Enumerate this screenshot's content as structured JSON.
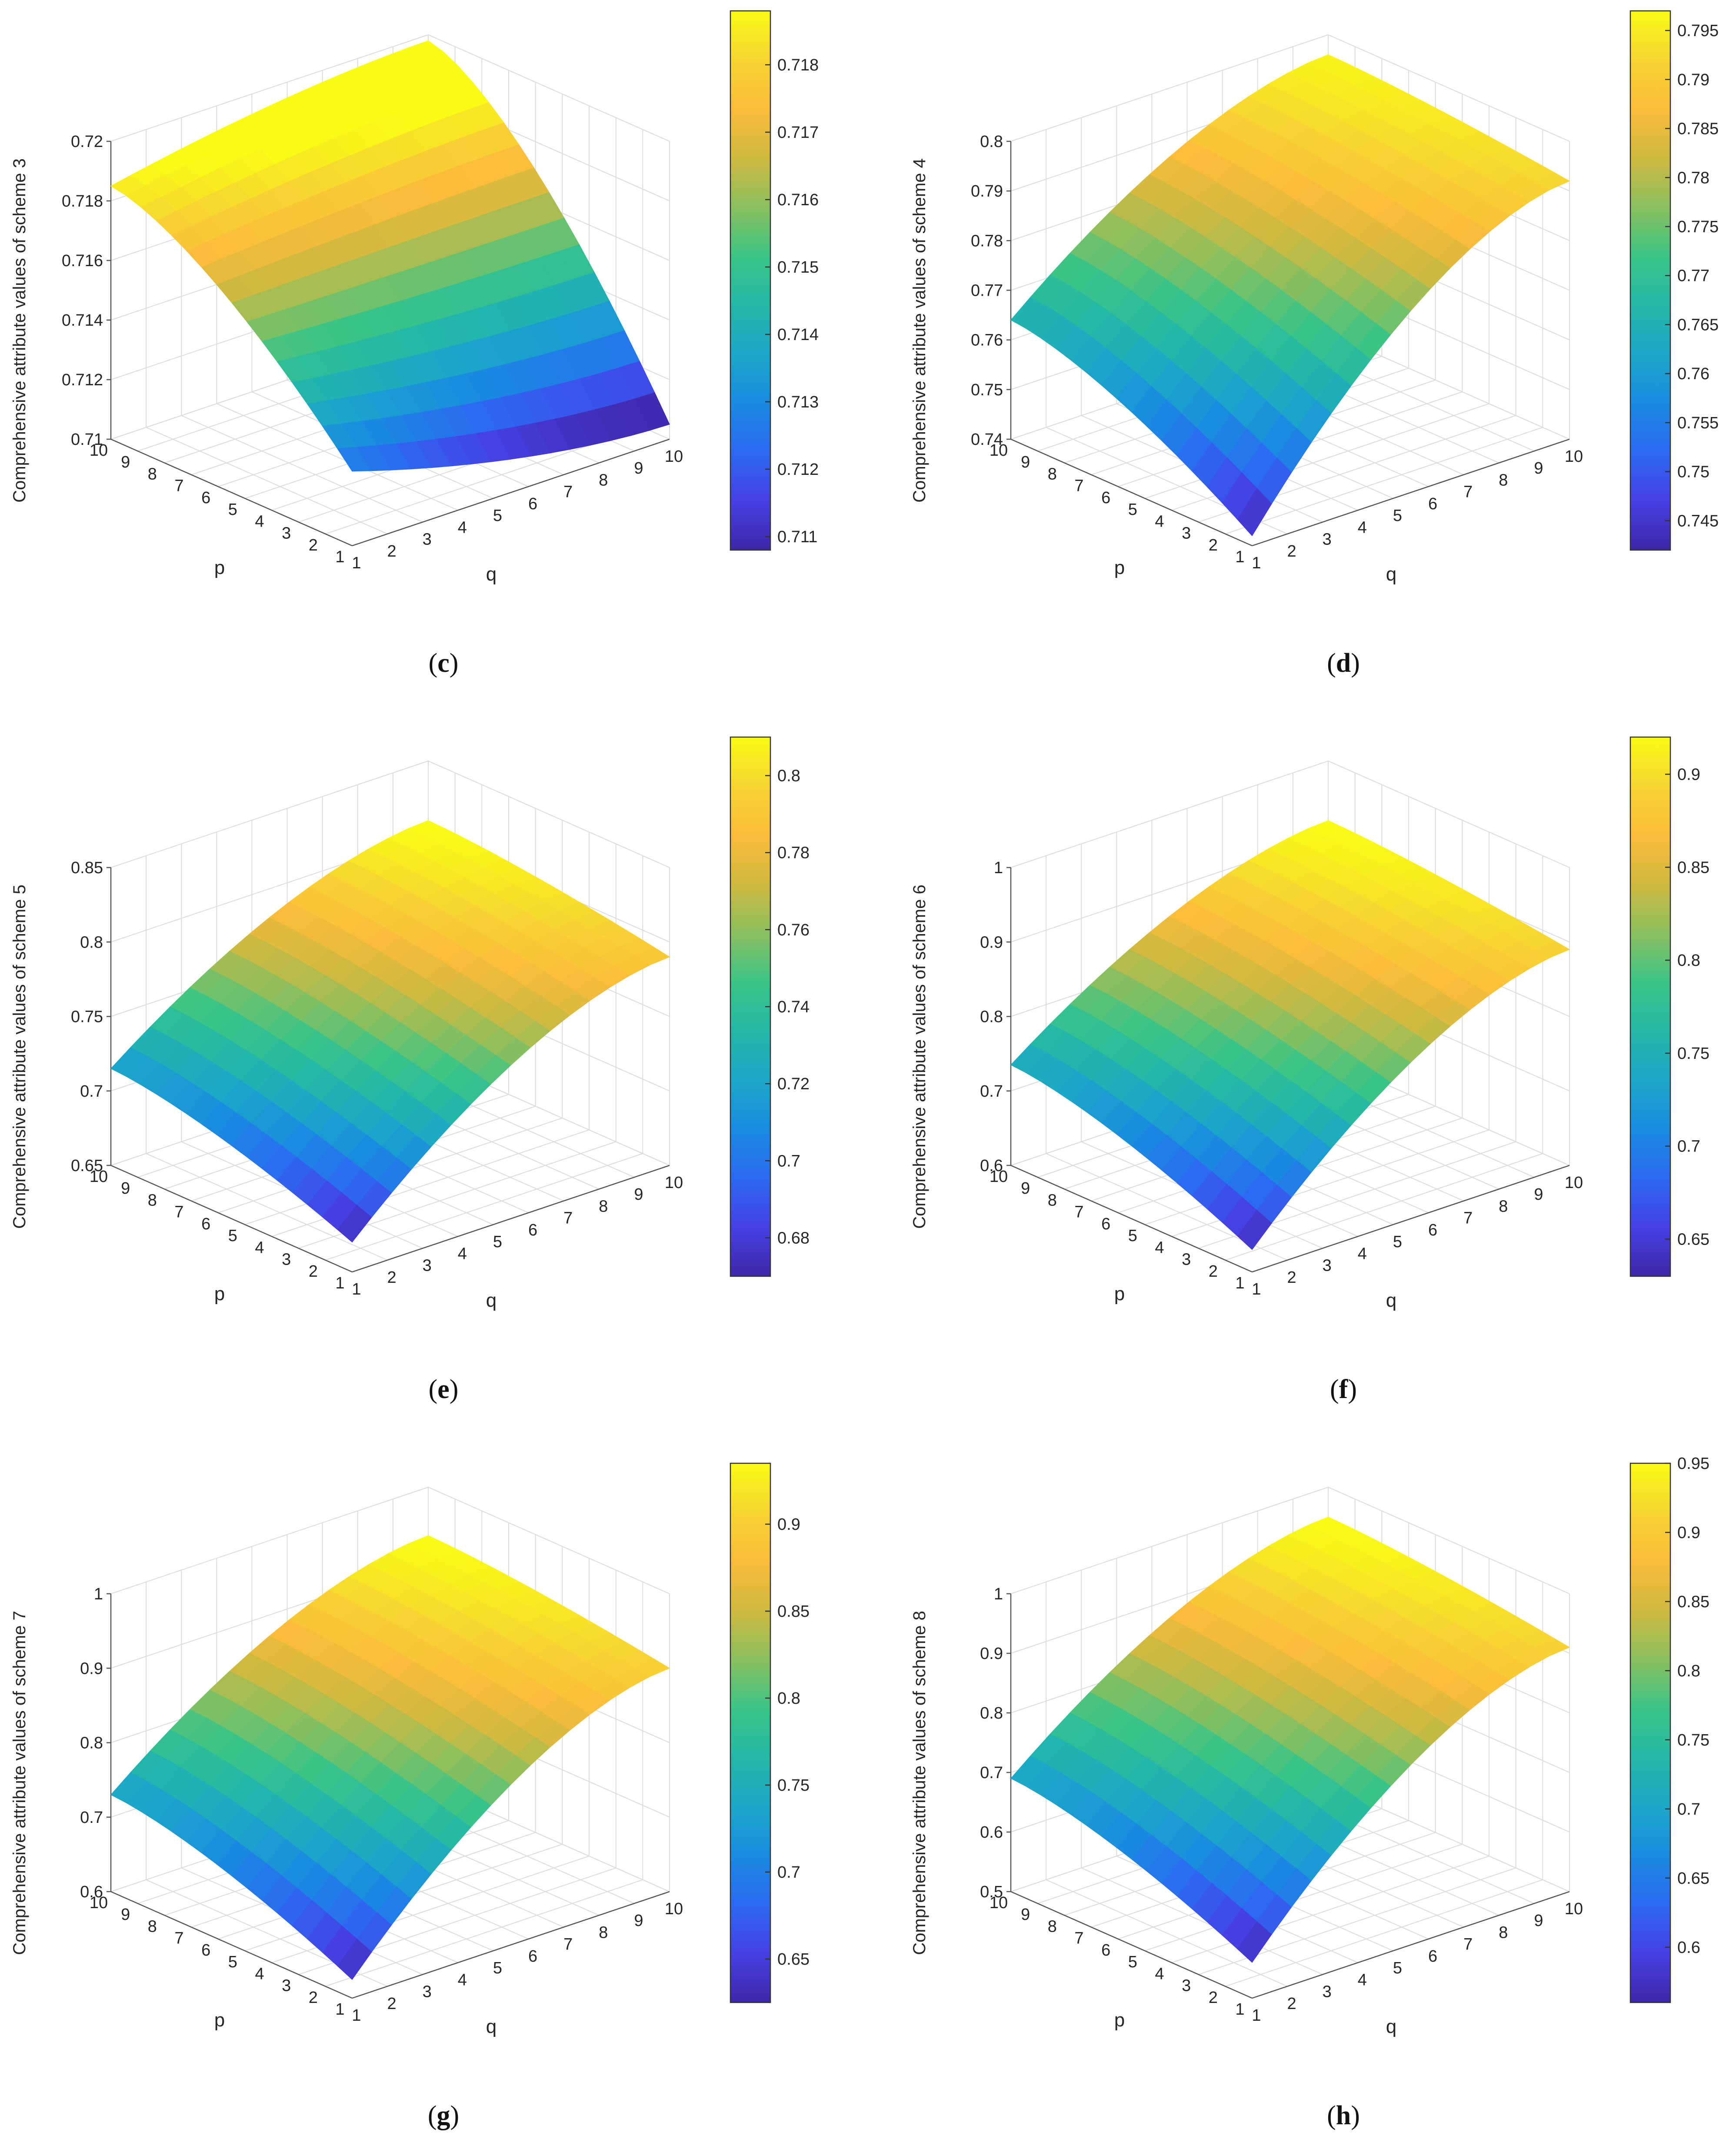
{
  "colormap": [
    "#3e26a8",
    "#4640e3",
    "#2c69f2",
    "#1a8be0",
    "#1ca7c8",
    "#24b8a6",
    "#3cc486",
    "#8bbf5e",
    "#d0b940",
    "#fbbc3a",
    "#f7d532",
    "#f9fb15"
  ],
  "chart_data": [
    {
      "panel": "c",
      "type": "surface",
      "xlabel": "q",
      "ylabel": "p",
      "zlabel": "Comprehensive attribute values of scheme 3",
      "x": [
        1,
        2,
        3,
        4,
        5,
        6,
        7,
        8,
        9,
        10
      ],
      "y": [
        1,
        2,
        3,
        4,
        5,
        6,
        7,
        8,
        9,
        10
      ],
      "corners": {
        "p1_q1": 0.7125,
        "p10_q1": 0.7185,
        "p10_q10": 0.7198,
        "p1_q10": 0.7105
      },
      "zlim": [
        0.71,
        0.72
      ],
      "zticks": [
        "0.71",
        "0.712",
        "0.714",
        "0.716",
        "0.718",
        "0.72"
      ],
      "clim": [
        0.7108,
        0.7188
      ],
      "cticks": [
        "0.711",
        "0.712",
        "0.713",
        "0.714",
        "0.715",
        "0.716",
        "0.717",
        "0.718"
      ]
    },
    {
      "panel": "d",
      "type": "surface",
      "xlabel": "q",
      "ylabel": "p",
      "zlabel": "Comprehensive attribute values of scheme 4",
      "x": [
        1,
        2,
        3,
        4,
        5,
        6,
        7,
        8,
        9,
        10
      ],
      "y": [
        1,
        2,
        3,
        4,
        5,
        6,
        7,
        8,
        9,
        10
      ],
      "corners": {
        "p1_q1": 0.742,
        "p10_q1": 0.764,
        "p10_q10": 0.796,
        "p1_q10": 0.792
      },
      "zlim": [
        0.74,
        0.8
      ],
      "zticks": [
        "0.74",
        "0.75",
        "0.76",
        "0.77",
        "0.78",
        "0.79",
        "0.8"
      ],
      "clim": [
        0.742,
        0.797
      ],
      "cticks": [
        "0.745",
        "0.75",
        "0.755",
        "0.76",
        "0.765",
        "0.77",
        "0.775",
        "0.78",
        "0.785",
        "0.79",
        "0.795"
      ]
    },
    {
      "panel": "e",
      "type": "surface",
      "xlabel": "q",
      "ylabel": "p",
      "zlabel": "Comprehensive attribute values of scheme 5",
      "x": [
        1,
        2,
        3,
        4,
        5,
        6,
        7,
        8,
        9,
        10
      ],
      "y": [
        1,
        2,
        3,
        4,
        5,
        6,
        7,
        8,
        9,
        10
      ],
      "corners": {
        "p1_q1": 0.67,
        "p10_q1": 0.715,
        "p10_q10": 0.81,
        "p1_q10": 0.79
      },
      "zlim": [
        0.65,
        0.85
      ],
      "zticks": [
        "0.65",
        "0.7",
        "0.75",
        "0.8",
        "0.85"
      ],
      "clim": [
        0.67,
        0.81
      ],
      "cticks": [
        "0.68",
        "0.7",
        "0.72",
        "0.74",
        "0.76",
        "0.78",
        "0.8"
      ]
    },
    {
      "panel": "f",
      "type": "surface",
      "xlabel": "q",
      "ylabel": "p",
      "zlabel": "Comprehensive attribute values of scheme 6",
      "x": [
        1,
        2,
        3,
        4,
        5,
        6,
        7,
        8,
        9,
        10
      ],
      "y": [
        1,
        2,
        3,
        4,
        5,
        6,
        7,
        8,
        9,
        10
      ],
      "corners": {
        "p1_q1": 0.63,
        "p10_q1": 0.735,
        "p10_q10": 0.92,
        "p1_q10": 0.89
      },
      "zlim": [
        0.6,
        1.0
      ],
      "zticks": [
        "0.6",
        "0.7",
        "0.8",
        "0.9",
        "1"
      ],
      "clim": [
        0.63,
        0.92
      ],
      "cticks": [
        "0.65",
        "0.7",
        "0.75",
        "0.8",
        "0.85",
        "0.9"
      ]
    },
    {
      "panel": "g",
      "type": "surface",
      "xlabel": "q",
      "ylabel": "p",
      "zlabel": "Comprehensive attribute values of scheme 7",
      "x": [
        1,
        2,
        3,
        4,
        5,
        6,
        7,
        8,
        9,
        10
      ],
      "y": [
        1,
        2,
        3,
        4,
        5,
        6,
        7,
        8,
        9,
        10
      ],
      "corners": {
        "p1_q1": 0.625,
        "p10_q1": 0.73,
        "p10_q10": 0.935,
        "p1_q10": 0.9
      },
      "zlim": [
        0.6,
        1.0
      ],
      "zticks": [
        "0.6",
        "0.7",
        "0.8",
        "0.9",
        "1"
      ],
      "clim": [
        0.625,
        0.935
      ],
      "cticks": [
        "0.65",
        "0.7",
        "0.75",
        "0.8",
        "0.85",
        "0.9"
      ]
    },
    {
      "panel": "h",
      "type": "surface",
      "xlabel": "q",
      "ylabel": "p",
      "zlabel": "Comprehensive attribute values of scheme 8",
      "x": [
        1,
        2,
        3,
        4,
        5,
        6,
        7,
        8,
        9,
        10
      ],
      "y": [
        1,
        2,
        3,
        4,
        5,
        6,
        7,
        8,
        9,
        10
      ],
      "corners": {
        "p1_q1": 0.56,
        "p10_q1": 0.69,
        "p10_q10": 0.95,
        "p1_q10": 0.91
      },
      "zlim": [
        0.5,
        1.0
      ],
      "zticks": [
        "0.5",
        "0.6",
        "0.7",
        "0.8",
        "0.9",
        "1"
      ],
      "clim": [
        0.56,
        0.95
      ],
      "cticks": [
        "0.6",
        "0.65",
        "0.7",
        "0.75",
        "0.8",
        "0.85",
        "0.9",
        "0.95"
      ]
    }
  ],
  "captions": [
    "(c)",
    "(d)",
    "(e)",
    "(f)",
    "(g)",
    "(h)"
  ]
}
